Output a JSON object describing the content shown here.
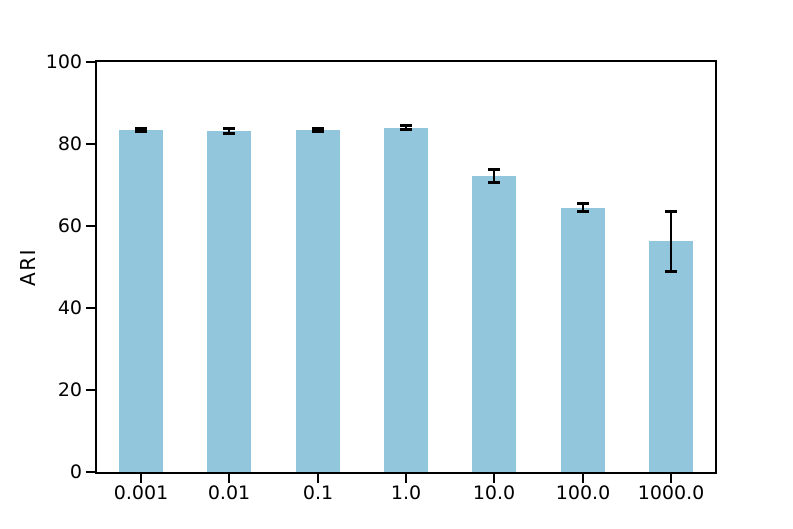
{
  "figure": {
    "background": "#ffffff",
    "bar_color": "#92c6dc",
    "error_color": "#000000",
    "axis_color": "#000000"
  },
  "chart_data": {
    "type": "bar",
    "title": "",
    "xlabel": "",
    "ylabel": "ARI",
    "categories": [
      "0.001",
      "0.01",
      "0.1",
      "1.0",
      "10.0",
      "100.0",
      "1000.0"
    ],
    "values": [
      83.4,
      83.2,
      83.5,
      84.0,
      72.1,
      64.5,
      56.3
    ],
    "error_bars": [
      0.4,
      0.6,
      0.4,
      0.4,
      1.6,
      1.0,
      7.3
    ],
    "ylim": [
      0,
      100
    ],
    "yticks": [
      0,
      20,
      40,
      60,
      80,
      100
    ],
    "bar_width_fraction": 0.5,
    "grid": false,
    "legend": false
  }
}
